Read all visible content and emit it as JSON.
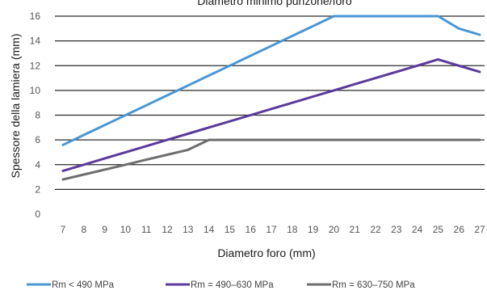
{
  "chart_data": {
    "type": "line",
    "title": "Diametro minimo punzone/foro",
    "xlabel": "Diametro foro (mm)",
    "ylabel": "Spessore della lamiera (mm)",
    "categories": [
      "7",
      "8",
      "9",
      "10",
      "11",
      "12",
      "13",
      "14",
      "15",
      "16",
      "17",
      "18",
      "19",
      "20",
      "21",
      "22",
      "23",
      "24",
      "25",
      "26",
      "27"
    ],
    "ylim": [
      0,
      16
    ],
    "yticks": [
      "0",
      "2",
      "4",
      "6",
      "8",
      "10",
      "12",
      "14",
      "16"
    ],
    "grid": "horizontal",
    "legend_position": "bottom",
    "series": [
      {
        "name": "Rm < 490 MPa",
        "color": "#4a97d4",
        "values": [
          5.6,
          6.4,
          7.2,
          8.0,
          8.8,
          9.6,
          10.4,
          11.2,
          12.0,
          12.8,
          13.6,
          14.4,
          15.2,
          16.0,
          16.0,
          16.0,
          16.0,
          16.0,
          16.0,
          15.0,
          14.5
        ]
      },
      {
        "name": "Rm = 490–630 MPa",
        "color": "#5b3a9b",
        "values": [
          3.5,
          4.0,
          4.5,
          5.0,
          5.5,
          6.0,
          6.5,
          7.0,
          7.5,
          8.0,
          8.5,
          9.0,
          9.5,
          10.0,
          10.5,
          11.0,
          11.5,
          12.0,
          12.5,
          12.0,
          11.5
        ]
      },
      {
        "name": "Rm = 630–750 MPa",
        "color": "#6e6e6e",
        "values": [
          2.8,
          3.2,
          3.6,
          4.0,
          4.4,
          4.8,
          5.2,
          6.0,
          6.0,
          6.0,
          6.0,
          6.0,
          6.0,
          6.0,
          6.0,
          6.0,
          6.0,
          6.0,
          6.0,
          6.0,
          6.0
        ]
      }
    ]
  }
}
